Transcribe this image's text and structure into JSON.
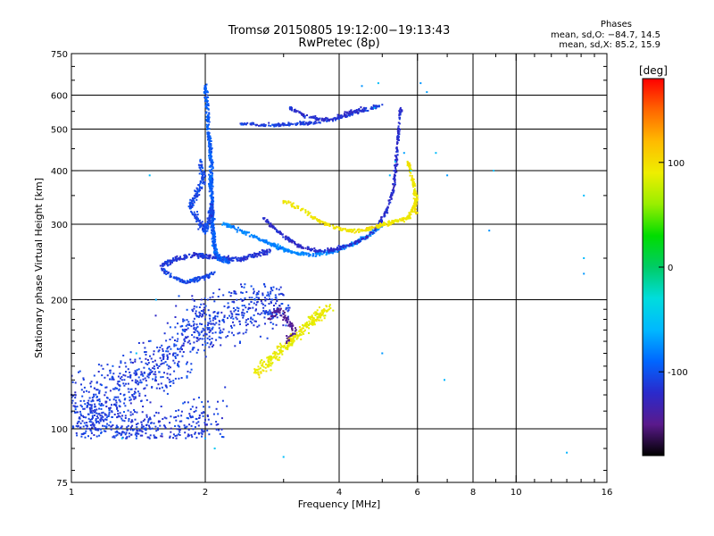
{
  "header": {
    "title_line1": "Tromsø 20150805 19:12:00−19:13:43",
    "title_line2": "RwPretec (8p)",
    "phase_title": "Phases",
    "phase_o": "mean, sd,O: −84.7, 14.5",
    "phase_x": "mean, sd,X:  85.2, 15.9"
  },
  "chart_data": {
    "type": "scatter",
    "xlabel": "Frequency [MHz]",
    "ylabel": "Stationary phase Virtual Height [km]",
    "xscale": "log",
    "yscale": "log",
    "xlim": [
      1,
      16
    ],
    "ylim": [
      75,
      750
    ],
    "x_ticks": [
      1,
      2,
      4,
      6,
      8,
      10,
      16
    ],
    "x_grid": [
      2,
      4,
      6,
      8,
      10
    ],
    "y_ticks": [
      75,
      100,
      200,
      300,
      400,
      500,
      600,
      750
    ],
    "y_grid": [
      100,
      200,
      300,
      400,
      500,
      600
    ],
    "grid": true,
    "colorbar": {
      "label": "[deg]",
      "range": [
        -180,
        180
      ],
      "ticks": [
        100,
        0,
        -100
      ],
      "colormap": [
        "#000000",
        "#5a1a8c",
        "#2a2acc",
        "#0066ff",
        "#00b8ff",
        "#00dddd",
        "#00cc66",
        "#00dd00",
        "#99ee00",
        "#eeee00",
        "#ffbb00",
        "#ff6600",
        "#ff0000"
      ]
    },
    "series": [
      {
        "values": [
          [
            1.0,
            120
          ],
          [
            1.1,
            118
          ],
          [
            1.2,
            125
          ],
          [
            1.3,
            130
          ],
          [
            1.4,
            128
          ],
          [
            1.5,
            135
          ],
          [
            1.6,
            142
          ],
          [
            1.7,
            150
          ],
          [
            1.8,
            160
          ],
          [
            1.9,
            170
          ],
          [
            2.0,
            180
          ],
          [
            2.1,
            175
          ],
          [
            2.3,
            185
          ],
          [
            2.5,
            190
          ],
          [
            2.7,
            195
          ],
          [
            2.9,
            200
          ],
          [
            3.0,
            205
          ],
          [
            1.05,
            103
          ],
          [
            1.1,
            104
          ],
          [
            1.15,
            104
          ],
          [
            1.2,
            105
          ],
          [
            1.3,
            98
          ],
          [
            1.35,
            96
          ],
          [
            1.4,
            95
          ],
          [
            1.5,
            95
          ],
          [
            1.6,
            96
          ],
          [
            1.8,
            98
          ],
          [
            1.9,
            101
          ],
          [
            2.0,
            105
          ]
        ],
        "phase": -110,
        "spread": 0.04,
        "count": 1500,
        "scatter_mode": "cloud",
        "bounds": {
          "x": [
            1.0,
            3.1
          ],
          "y": [
            95,
            220
          ]
        }
      },
      {
        "values": [
          [
            1.6,
            240
          ],
          [
            1.65,
            245
          ],
          [
            1.75,
            250
          ],
          [
            1.9,
            255
          ],
          [
            2.0,
            252
          ],
          [
            2.2,
            250
          ],
          [
            2.4,
            248
          ],
          [
            2.6,
            255
          ],
          [
            2.8,
            260
          ]
        ],
        "phase": -115,
        "spread": 0.015,
        "count": 300
      },
      {
        "values": [
          [
            1.6,
            235
          ],
          [
            1.7,
            225
          ],
          [
            1.8,
            220
          ],
          [
            1.9,
            222
          ],
          [
            2.0,
            226
          ],
          [
            2.1,
            232
          ]
        ],
        "phase": -105,
        "spread": 0.012,
        "count": 120
      },
      {
        "values": [
          [
            2.0,
            630
          ],
          [
            2.02,
            560
          ],
          [
            2.03,
            500
          ],
          [
            2.05,
            460
          ],
          [
            2.06,
            420
          ],
          [
            2.06,
            380
          ],
          [
            2.07,
            350
          ],
          [
            2.07,
            320
          ],
          [
            2.08,
            300
          ],
          [
            2.09,
            280
          ],
          [
            2.1,
            260
          ],
          [
            2.15,
            250
          ],
          [
            2.25,
            245
          ]
        ],
        "phase": -95,
        "spread": 0.015,
        "count": 500
      },
      {
        "values": [
          [
            1.95,
            420
          ],
          [
            1.98,
            380
          ],
          [
            1.9,
            350
          ],
          [
            1.85,
            330
          ],
          [
            1.95,
            300
          ],
          [
            2.0,
            290
          ],
          [
            2.05,
            310
          ],
          [
            2.08,
            330
          ]
        ],
        "phase": -105,
        "spread": 0.02,
        "count": 250
      },
      {
        "values": [
          [
            2.2,
            300
          ],
          [
            2.4,
            290
          ],
          [
            2.6,
            280
          ],
          [
            2.8,
            270
          ],
          [
            3.0,
            262
          ],
          [
            3.2,
            257
          ],
          [
            3.5,
            255
          ],
          [
            3.8,
            258
          ],
          [
            4.0,
            262
          ],
          [
            4.3,
            270
          ],
          [
            4.6,
            280
          ],
          [
            5.0,
            300
          ]
        ],
        "phase": -80,
        "spread": 0.012,
        "count": 400
      },
      {
        "values": [
          [
            2.7,
            310
          ],
          [
            2.9,
            290
          ],
          [
            3.1,
            275
          ],
          [
            3.3,
            265
          ],
          [
            3.6,
            260
          ],
          [
            3.9,
            262
          ],
          [
            4.2,
            268
          ],
          [
            4.6,
            280
          ],
          [
            4.9,
            298
          ],
          [
            5.1,
            320
          ],
          [
            5.3,
            360
          ],
          [
            5.35,
            400
          ],
          [
            5.4,
            450
          ],
          [
            5.45,
            500
          ],
          [
            5.5,
            560
          ]
        ],
        "phase": -120,
        "spread": 0.01,
        "count": 400
      },
      {
        "values": [
          [
            2.4,
            515
          ],
          [
            2.7,
            512
          ],
          [
            3.0,
            512
          ],
          [
            3.3,
            515
          ],
          [
            3.6,
            518
          ],
          [
            4.0,
            530
          ],
          [
            4.5,
            550
          ],
          [
            5.0,
            570
          ]
        ],
        "phase": -110,
        "spread": 0.01,
        "count": 200
      },
      {
        "values": [
          [
            3.1,
            560
          ],
          [
            3.3,
            540
          ],
          [
            3.6,
            525
          ],
          [
            3.9,
            530
          ],
          [
            4.2,
            545
          ],
          [
            4.6,
            560
          ]
        ],
        "phase": -120,
        "spread": 0.012,
        "count": 120
      },
      {
        "values": [
          [
            3.0,
            340
          ],
          [
            3.3,
            325
          ],
          [
            3.6,
            305
          ],
          [
            3.9,
            295
          ],
          [
            4.2,
            290
          ],
          [
            4.5,
            290
          ],
          [
            4.8,
            295
          ],
          [
            5.1,
            300
          ],
          [
            5.4,
            305
          ],
          [
            5.7,
            310
          ],
          [
            5.9,
            330
          ],
          [
            6.0,
            350
          ]
        ],
        "phase": 95,
        "spread": 0.012,
        "count": 300
      },
      {
        "values": [
          [
            5.7,
            420
          ],
          [
            5.8,
            400
          ],
          [
            5.85,
            380
          ],
          [
            5.9,
            360
          ],
          [
            5.95,
            340
          ],
          [
            5.95,
            320
          ]
        ],
        "phase": 95,
        "spread": 0.012,
        "count": 80
      },
      {
        "values": [
          [
            2.6,
            135
          ],
          [
            2.8,
            145
          ],
          [
            3.0,
            155
          ],
          [
            3.2,
            165
          ],
          [
            3.4,
            175
          ],
          [
            3.6,
            185
          ],
          [
            3.8,
            190
          ]
        ],
        "phase": 90,
        "spread": 0.035,
        "count": 300
      },
      {
        "values": [
          [
            2.8,
            180
          ],
          [
            2.9,
            190
          ],
          [
            3.0,
            185
          ],
          [
            3.1,
            175
          ],
          [
            3.2,
            170
          ],
          [
            3.05,
            160
          ]
        ],
        "phase": -145,
        "spread": 0.02,
        "count": 70
      },
      {
        "values": [
          [
            5.2,
            390
          ],
          [
            5.35,
            420
          ],
          [
            5.6,
            440
          ],
          [
            5.8,
            400
          ],
          [
            6.3,
            610
          ],
          [
            6.1,
            640
          ],
          [
            7.0,
            390
          ],
          [
            6.6,
            440
          ],
          [
            8.9,
            400
          ],
          [
            8.7,
            290
          ],
          [
            14.2,
            350
          ],
          [
            14.2,
            250
          ],
          [
            14.2,
            230
          ],
          [
            6.9,
            130
          ],
          [
            3.0,
            86
          ],
          [
            13.0,
            88
          ],
          [
            5.0,
            150
          ],
          [
            4.8,
            560
          ],
          [
            4.5,
            630
          ],
          [
            4.9,
            640
          ],
          [
            1.5,
            390
          ],
          [
            1.4,
            150
          ],
          [
            1.3,
            95
          ],
          [
            1.55,
            200
          ],
          [
            2.1,
            90
          ],
          [
            2.0,
            95
          ]
        ],
        "phase": -60,
        "spread": 0.0,
        "count": 0,
        "scatter_mode": "sparse"
      }
    ]
  }
}
